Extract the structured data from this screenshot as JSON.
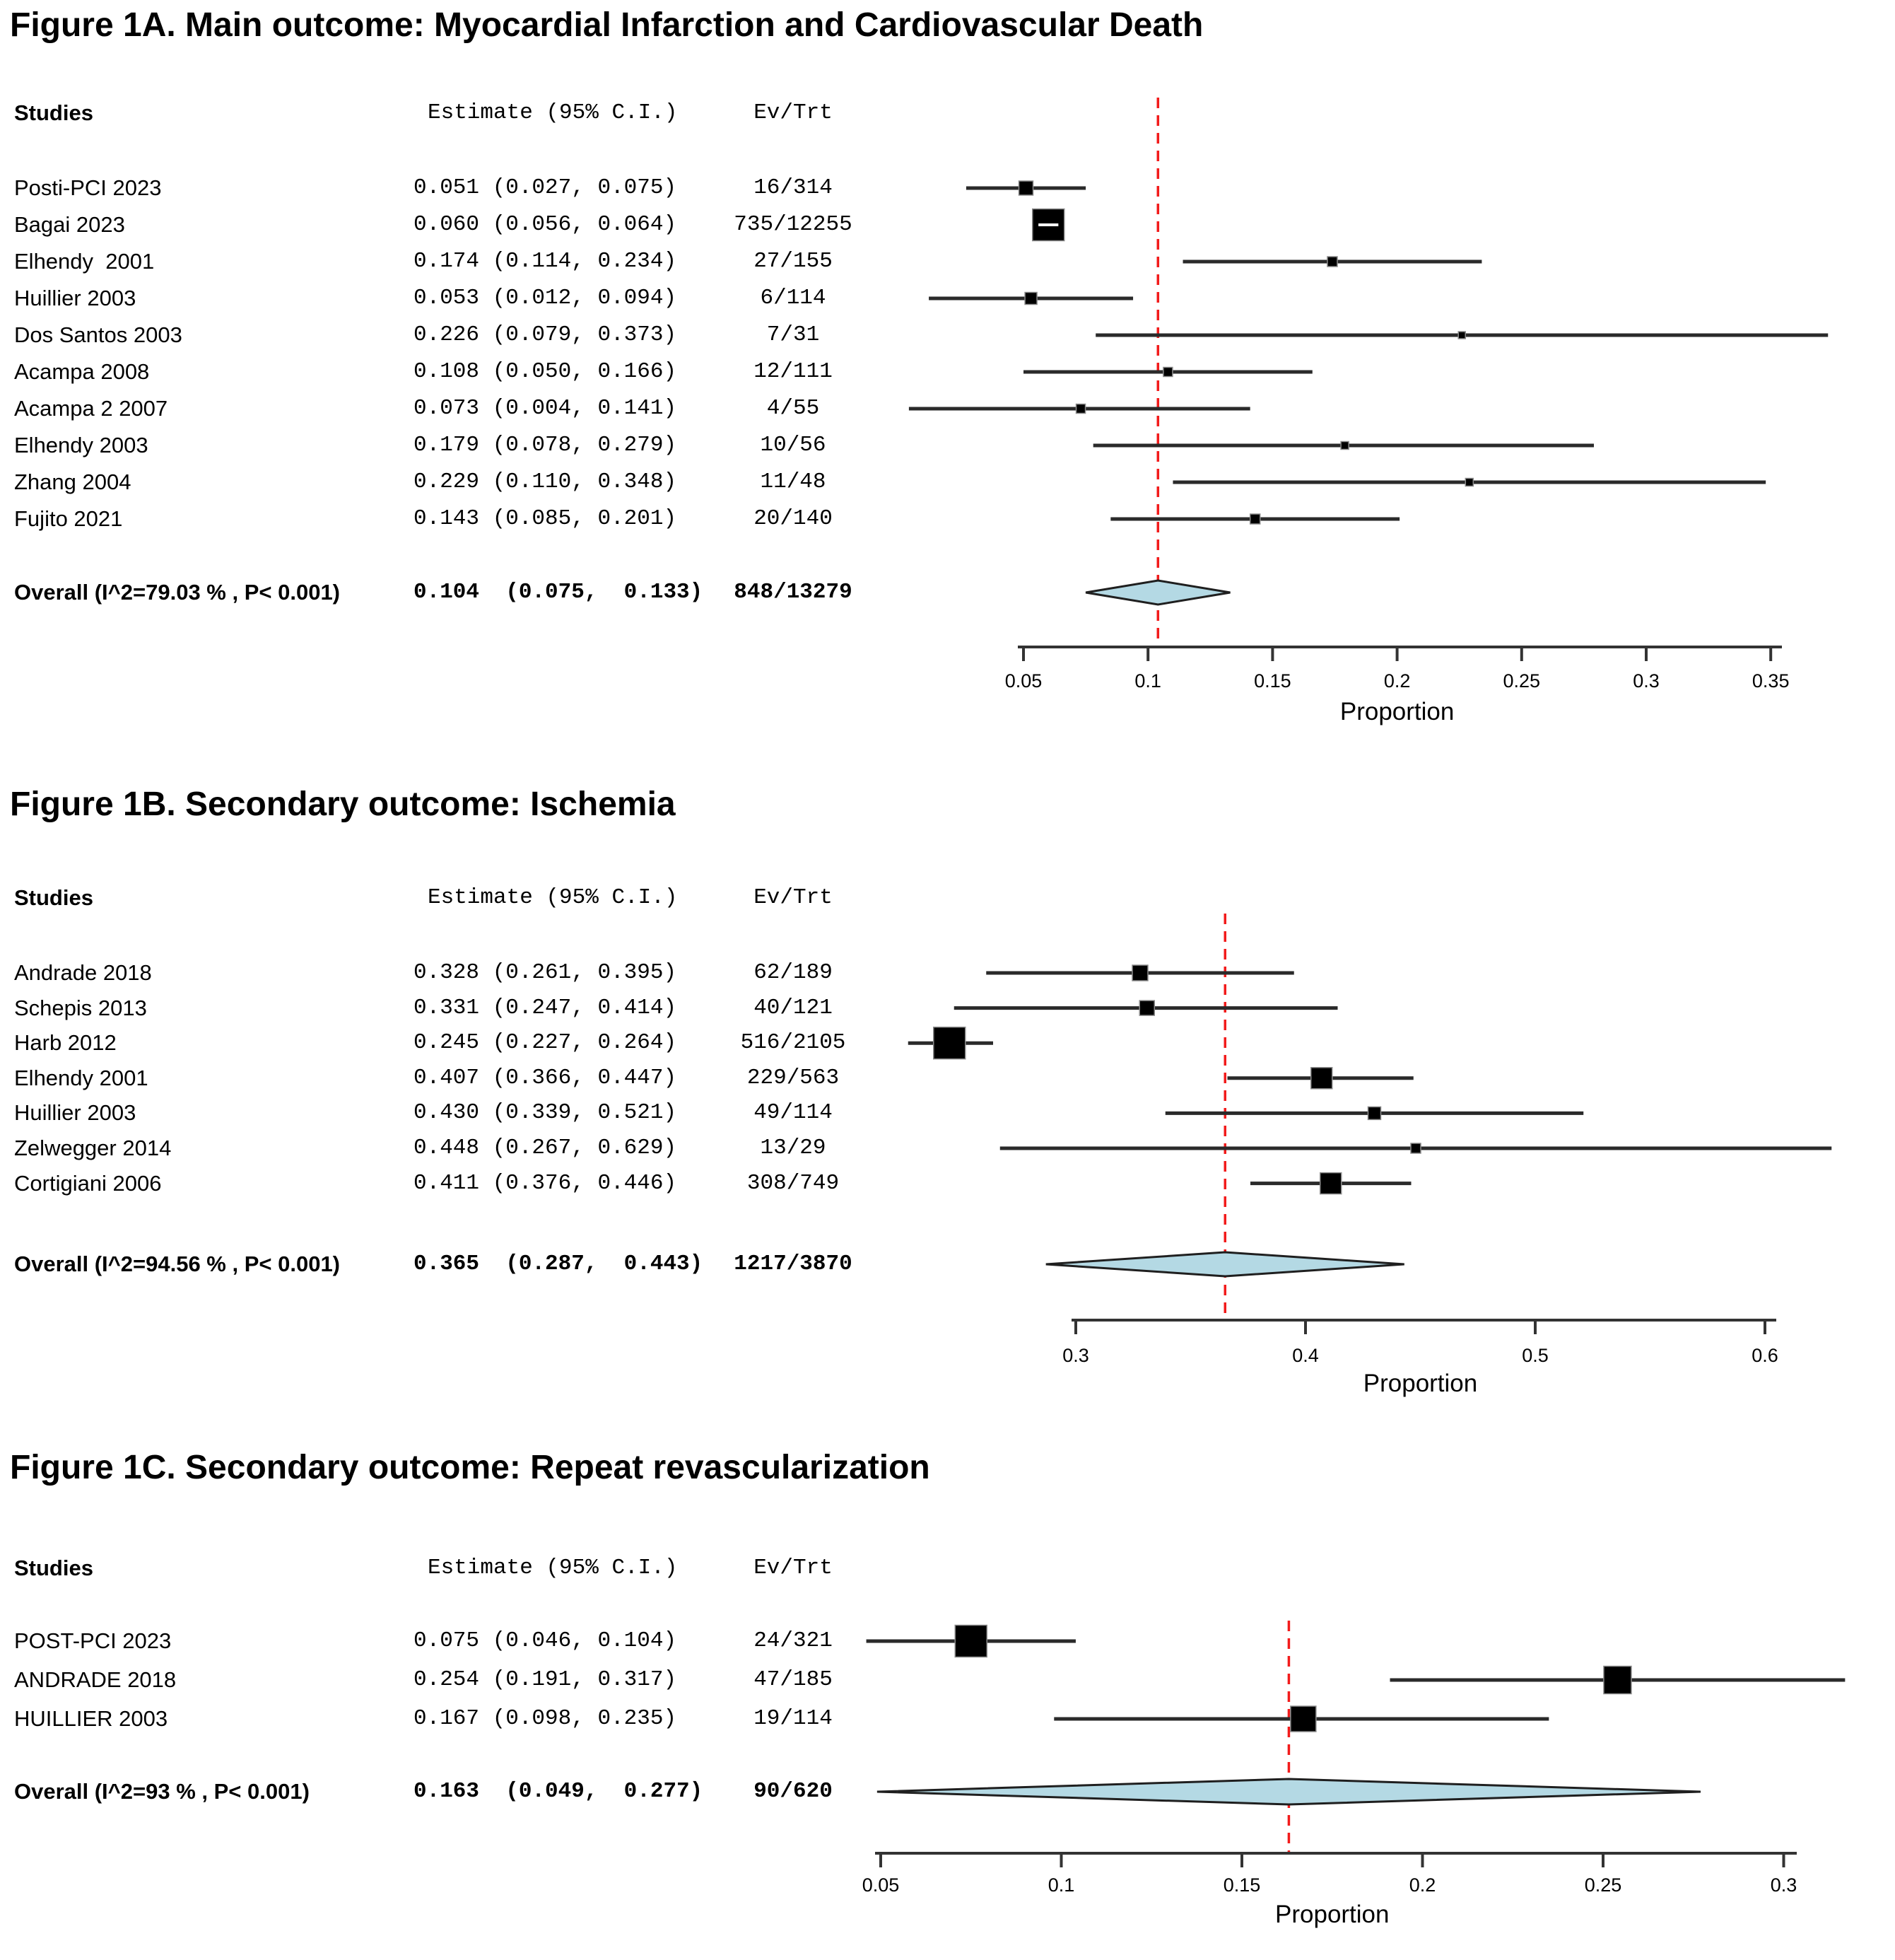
{
  "colors": {
    "background": "#ffffff",
    "text": "#000000",
    "marker": "#000000",
    "marker_edge": "#8a8a8a",
    "ci_line": "#2a2a2a",
    "axis": "#333333",
    "ref_line": "#f21b1b",
    "diamond_fill": "#b4d9e4",
    "diamond_stroke": "#1f1f1f"
  },
  "chart_data": [
    {
      "type": "scatter",
      "subtype": "forest_plot",
      "title": "Figure 1A. Main outcome: Myocardial Infarction and Cardiovascular Death",
      "xlabel": "Proportion",
      "grid": false,
      "columns": {
        "studies": "Studies",
        "estimate": "Estimate (95% C.I.)",
        "ev_trt": "Ev/Trt"
      },
      "axis_range": [
        0.05,
        0.35
      ],
      "x_ticks": [
        0.05,
        0.1,
        0.15,
        0.2,
        0.25,
        0.3,
        0.35
      ],
      "x_tick_labels": [
        "0.05",
        "0.1",
        "0.15",
        "0.2",
        "0.25",
        "0.3",
        "0.35"
      ],
      "ref_line": 0.104,
      "studies": [
        {
          "name": "Posti-PCI 2023",
          "estimate_label": "0.051 (0.027, 0.075)",
          "estimate": 0.051,
          "ci_low": 0.027,
          "ci_high": 0.075,
          "ev_trt": "16/314",
          "marker_px": 20
        },
        {
          "name": "Bagai 2023",
          "estimate_label": "0.060 (0.056, 0.064)",
          "estimate": 0.06,
          "ci_low": 0.056,
          "ci_high": 0.064,
          "ev_trt": "735/12255",
          "marker_px": 45
        },
        {
          "name": "Elhendy  2001",
          "estimate_label": "0.174 (0.114, 0.234)",
          "estimate": 0.174,
          "ci_low": 0.114,
          "ci_high": 0.234,
          "ev_trt": "27/155",
          "marker_px": 14
        },
        {
          "name": "Huillier 2003",
          "estimate_label": "0.053 (0.012, 0.094)",
          "estimate": 0.053,
          "ci_low": 0.012,
          "ci_high": 0.094,
          "ev_trt": "6/114",
          "marker_px": 17
        },
        {
          "name": "Dos Santos 2003",
          "estimate_label": "0.226 (0.079, 0.373)",
          "estimate": 0.226,
          "ci_low": 0.079,
          "ci_high": 0.373,
          "ev_trt": "7/31",
          "marker_px": 10
        },
        {
          "name": "Acampa 2008",
          "estimate_label": "0.108 (0.050, 0.166)",
          "estimate": 0.108,
          "ci_low": 0.05,
          "ci_high": 0.166,
          "ev_trt": "12/111",
          "marker_px": 13
        },
        {
          "name": "Acampa 2 2007",
          "estimate_label": "0.073 (0.004, 0.141)",
          "estimate": 0.073,
          "ci_low": 0.004,
          "ci_high": 0.141,
          "ev_trt": "4/55",
          "marker_px": 13
        },
        {
          "name": "Elhendy 2003",
          "estimate_label": "0.179 (0.078, 0.279)",
          "estimate": 0.179,
          "ci_low": 0.078,
          "ci_high": 0.279,
          "ev_trt": "10/56",
          "marker_px": 11
        },
        {
          "name": "Zhang 2004",
          "estimate_label": "0.229 (0.110, 0.348)",
          "estimate": 0.229,
          "ci_low": 0.11,
          "ci_high": 0.348,
          "ev_trt": "11/48",
          "marker_px": 11
        },
        {
          "name": "Fujito 2021",
          "estimate_label": "0.143 (0.085, 0.201)",
          "estimate": 0.143,
          "ci_low": 0.085,
          "ci_high": 0.201,
          "ev_trt": "20/140",
          "marker_px": 14
        }
      ],
      "overall": {
        "label": "Overall (I^2=79.03 % , P< 0.001)",
        "estimate_label": "0.104  (0.075,  0.133)",
        "estimate": 0.104,
        "ci_low": 0.075,
        "ci_high": 0.133,
        "ev_trt": "848/13279"
      }
    },
    {
      "type": "scatter",
      "subtype": "forest_plot",
      "title": "Figure 1B. Secondary outcome: Ischemia",
      "xlabel": "Proportion",
      "grid": false,
      "columns": {
        "studies": "Studies",
        "estimate": "Estimate (95% C.I.)",
        "ev_trt": "Ev/Trt"
      },
      "axis_range": [
        0.3,
        0.6
      ],
      "x_ticks": [
        0.3,
        0.4,
        0.5,
        0.6
      ],
      "x_tick_labels": [
        "0.3",
        "0.4",
        "0.5",
        "0.6"
      ],
      "ref_line": 0.365,
      "studies": [
        {
          "name": "Andrade 2018",
          "estimate_label": "0.328 (0.261, 0.395)",
          "estimate": 0.328,
          "ci_low": 0.261,
          "ci_high": 0.395,
          "ev_trt": "62/189",
          "marker_px": 22
        },
        {
          "name": "Schepis 2013",
          "estimate_label": "0.331 (0.247, 0.414)",
          "estimate": 0.331,
          "ci_low": 0.247,
          "ci_high": 0.414,
          "ev_trt": "40/121",
          "marker_px": 21
        },
        {
          "name": "Harb 2012",
          "estimate_label": "0.245 (0.227, 0.264)",
          "estimate": 0.245,
          "ci_low": 0.227,
          "ci_high": 0.264,
          "ev_trt": "516/2105",
          "marker_px": 45
        },
        {
          "name": "Elhendy 2001",
          "estimate_label": "0.407 (0.366, 0.447)",
          "estimate": 0.407,
          "ci_low": 0.366,
          "ci_high": 0.447,
          "ev_trt": "229/563",
          "marker_px": 30
        },
        {
          "name": "Huillier 2003",
          "estimate_label": "0.430 (0.339, 0.521)",
          "estimate": 0.43,
          "ci_low": 0.339,
          "ci_high": 0.521,
          "ev_trt": "49/114",
          "marker_px": 18
        },
        {
          "name": "Zelwegger 2014",
          "estimate_label": "0.448 (0.267, 0.629)",
          "estimate": 0.448,
          "ci_low": 0.267,
          "ci_high": 0.629,
          "ev_trt": "13/29",
          "marker_px": 14
        },
        {
          "name": "Cortigiani 2006",
          "estimate_label": "0.411 (0.376, 0.446)",
          "estimate": 0.411,
          "ci_low": 0.376,
          "ci_high": 0.446,
          "ev_trt": "308/749",
          "marker_px": 30
        }
      ],
      "overall": {
        "label": "Overall (I^2=94.56 % , P< 0.001)",
        "estimate_label": "0.365  (0.287,  0.443)",
        "estimate": 0.365,
        "ci_low": 0.287,
        "ci_high": 0.443,
        "ev_trt": "1217/3870"
      }
    },
    {
      "type": "scatter",
      "subtype": "forest_plot",
      "title": "Figure 1C. Secondary outcome: Repeat revascularization",
      "xlabel": "Proportion",
      "grid": false,
      "columns": {
        "studies": "Studies",
        "estimate": "Estimate (95% C.I.)",
        "ev_trt": "Ev/Trt"
      },
      "axis_range": [
        0.05,
        0.3
      ],
      "x_ticks": [
        0.05,
        0.1,
        0.15,
        0.2,
        0.25,
        0.3
      ],
      "x_tick_labels": [
        "0.05",
        "0.1",
        "0.15",
        "0.2",
        "0.25",
        "0.3"
      ],
      "ref_line": 0.163,
      "studies": [
        {
          "name": "POST-PCI 2023",
          "estimate_label": "0.075 (0.046, 0.104)",
          "estimate": 0.075,
          "ci_low": 0.046,
          "ci_high": 0.104,
          "ev_trt": "24/321",
          "marker_px": 45
        },
        {
          "name": "ANDRADE 2018",
          "estimate_label": "0.254 (0.191, 0.317)",
          "estimate": 0.254,
          "ci_low": 0.191,
          "ci_high": 0.317,
          "ev_trt": "47/185",
          "marker_px": 39
        },
        {
          "name": "HUILLIER 2003",
          "estimate_label": "0.167 (0.098, 0.235)",
          "estimate": 0.167,
          "ci_low": 0.098,
          "ci_high": 0.235,
          "ev_trt": "19/114",
          "marker_px": 36
        }
      ],
      "overall": {
        "label": "Overall (I^2=93 % , P< 0.001)",
        "estimate_label": "0.163  (0.049,  0.277)",
        "estimate": 0.163,
        "ci_low": 0.049,
        "ci_high": 0.277,
        "ev_trt": "90/620"
      }
    }
  ]
}
